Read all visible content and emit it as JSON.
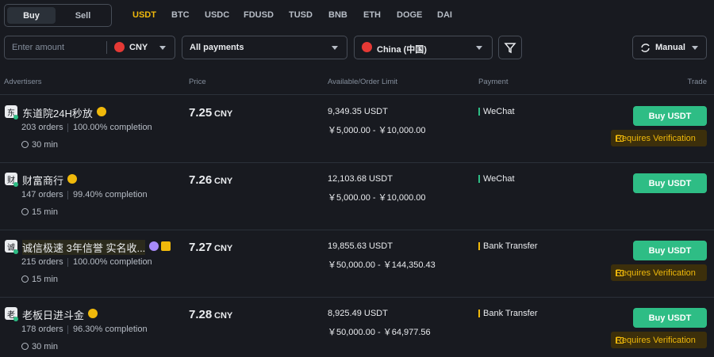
{
  "toggle": {
    "options": [
      "Buy",
      "Sell"
    ],
    "active": "Buy"
  },
  "coins": {
    "items": [
      "USDT",
      "BTC",
      "USDC",
      "FDUSD",
      "TUSD",
      "BNB",
      "ETH",
      "DOGE",
      "DAI"
    ],
    "active": "USDT"
  },
  "filters": {
    "amount_placeholder": "Enter amount",
    "currency": "CNY",
    "payments": "All payments",
    "region": "China (中国)",
    "refresh": "Manual"
  },
  "headers": [
    "Advertisers",
    "Price",
    "Available/Order Limit",
    "Payment",
    "Trade"
  ],
  "rows": [
    {
      "avatar": "东",
      "name": "东道院24H秒放",
      "orders": "203 orders",
      "completion": "100.00% completion",
      "time": "30 min",
      "price": "7.25",
      "currency": "CNY",
      "available": "9,349.35 USDT",
      "limit": "￥5,000.00 - ￥10,000.00",
      "payment": "WeChat",
      "payment_color": "#2ebd85",
      "button": "Buy USDT",
      "verification": "Requires Verification"
    },
    {
      "avatar": "财",
      "name": "财富商行",
      "orders": "147 orders",
      "completion": "99.40% completion",
      "time": "15 min",
      "price": "7.26",
      "currency": "CNY",
      "available": "12,103.68 USDT",
      "limit": "￥5,000.00 - ￥10,000.00",
      "payment": "WeChat",
      "payment_color": "#2ebd85",
      "button": "Buy USDT"
    },
    {
      "avatar": "诚",
      "name": "诚信极速 3年信誉 实名收...",
      "orders": "215 orders",
      "completion": "100.00% completion",
      "time": "15 min",
      "price": "7.27",
      "currency": "CNY",
      "available": "19,855.63 USDT",
      "limit": "￥50,000.00 - ￥144,350.43",
      "payment": "Bank Transfer",
      "payment_color": "#f0b90b",
      "button": "Buy USDT",
      "verification": "Requires Verification"
    },
    {
      "avatar": "老",
      "name": "老板日进斗金",
      "orders": "178 orders",
      "completion": "96.30% completion",
      "time": "30 min",
      "price": "7.28",
      "currency": "CNY",
      "available": "8,925.49 USDT",
      "limit": "￥50,000.00 - ￥64,977.56",
      "payment": "Bank Transfer",
      "payment_color": "#f0b90b",
      "button": "Buy USDT",
      "verification": "Requires Verification"
    }
  ]
}
